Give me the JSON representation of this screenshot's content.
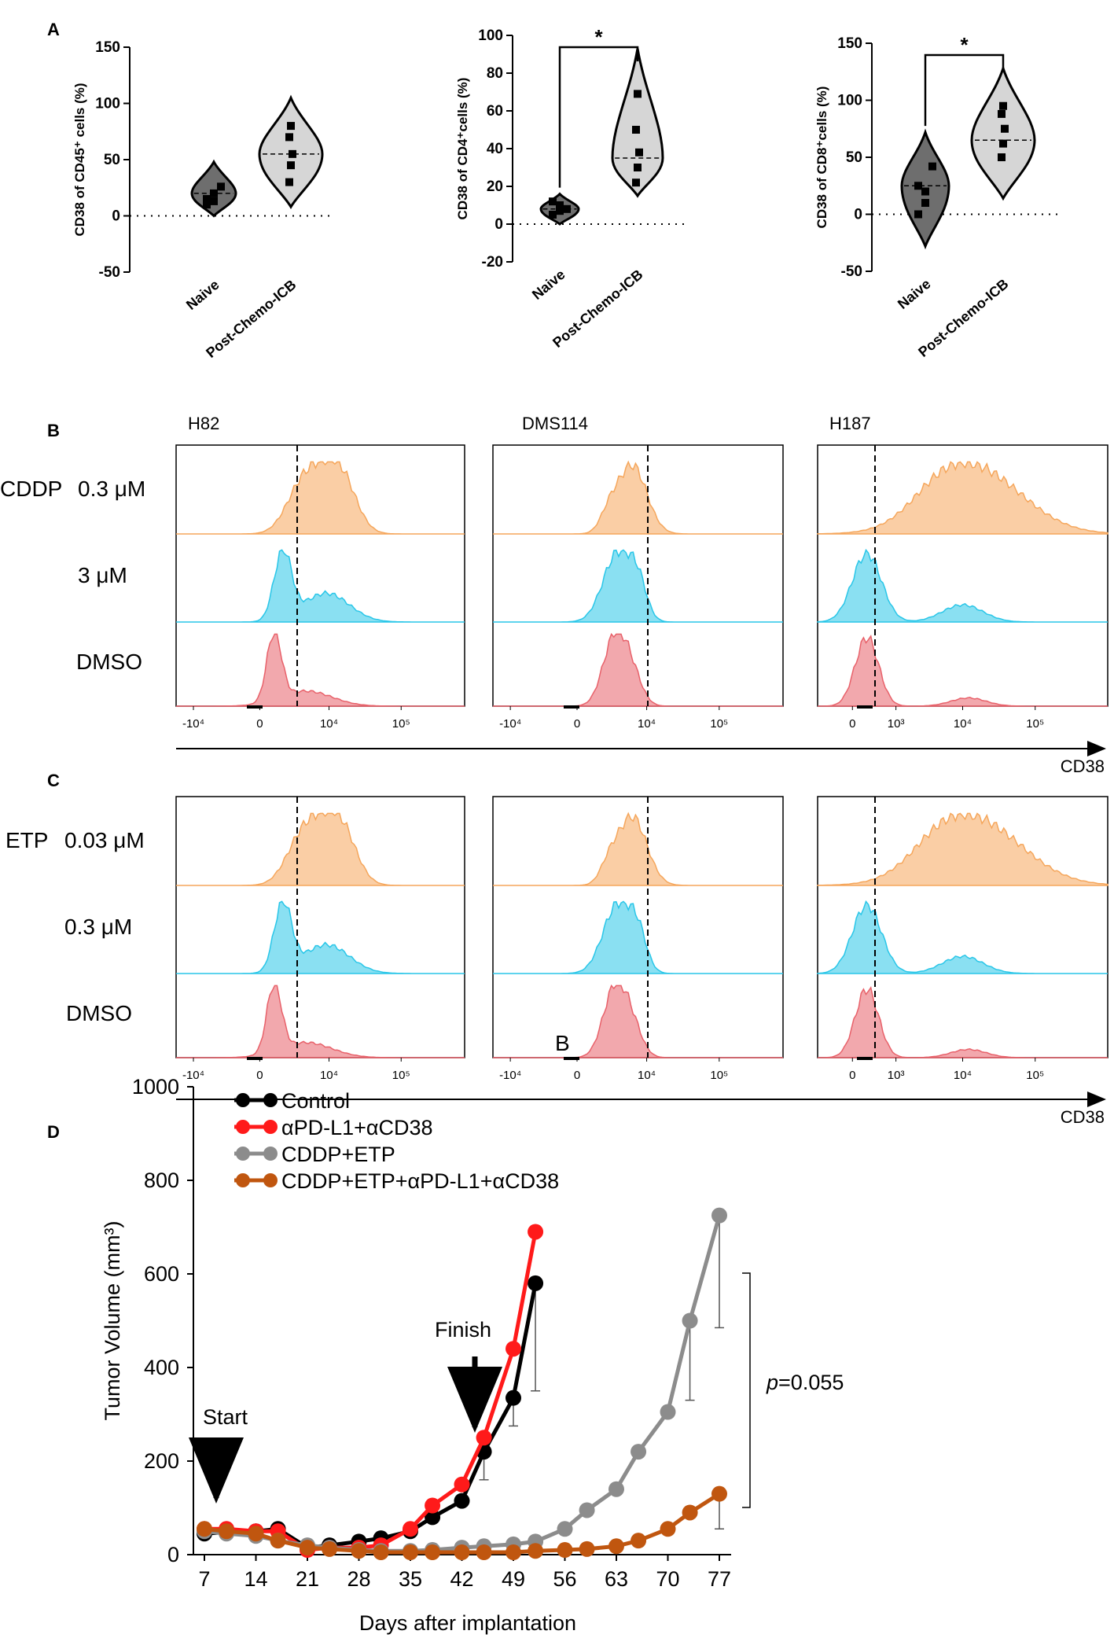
{
  "panel_labels": {
    "a": "A",
    "b": "B",
    "c": "C",
    "d": "D"
  },
  "stray_text": "B",
  "chart_data": [
    {
      "type": "violin",
      "panel": "A",
      "ylabel": "CD38 of CD45⁺ cells (%)",
      "categories": [
        "Naive",
        "Post-Chemo-ICB"
      ],
      "ylim": [
        -50,
        150
      ],
      "yticks": [
        "-50",
        "0",
        "50",
        "100",
        "150"
      ],
      "points": [
        [
          10,
          20,
          26,
          15,
          13
        ],
        [
          30,
          45,
          55,
          70,
          80
        ]
      ],
      "medians": [
        20,
        55
      ],
      "violin_range": [
        [
          0,
          48
        ],
        [
          8,
          105
        ]
      ],
      "significance": ""
    },
    {
      "type": "violin",
      "panel": "A",
      "ylabel": "CD38 of CD4⁺cells (%)",
      "categories": [
        "Naive",
        "Post-Chemo-ICB"
      ],
      "ylim": [
        -20,
        100
      ],
      "yticks": [
        "-20",
        "0",
        "20",
        "40",
        "60",
        "80",
        "100"
      ],
      "points": [
        [
          5,
          10,
          8,
          12,
          7
        ],
        [
          22,
          30,
          38,
          50,
          69
        ]
      ],
      "medians": [
        8,
        35
      ],
      "violin_range": [
        [
          0,
          16
        ],
        [
          15,
          93
        ]
      ],
      "significance": "*"
    },
    {
      "type": "violin",
      "panel": "A",
      "ylabel": "CD38 of CD8⁺cells (%)",
      "categories": [
        "Naive",
        "Post-Chemo-ICB"
      ],
      "ylim": [
        -50,
        150
      ],
      "yticks": [
        "-50",
        "0",
        "50",
        "100",
        "150"
      ],
      "points": [
        [
          0,
          20,
          42,
          25,
          10
        ],
        [
          50,
          62,
          75,
          88,
          95
        ]
      ],
      "medians": [
        25,
        65
      ],
      "violin_range": [
        [
          -28,
          72
        ],
        [
          14,
          128
        ]
      ],
      "significance": "*"
    },
    {
      "type": "histogram-overlay",
      "panel": "B",
      "column_titles": [
        "H82",
        "DMS114",
        "H187"
      ],
      "row_labels": [
        "CDDP",
        "0.3 μM",
        "3 μM",
        "DMSO"
      ],
      "xticks": [
        [
          "-10⁴",
          "0",
          "10⁴",
          "10⁵"
        ],
        [
          "-10⁴",
          "0",
          "10⁴",
          "10⁵"
        ],
        [
          "0",
          "10³",
          "10⁴",
          "10⁵"
        ]
      ],
      "xlabel": "CD38",
      "row_colors": [
        "#f5a65b",
        "#29c6e8",
        "#e8616a"
      ]
    },
    {
      "type": "histogram-overlay",
      "panel": "C",
      "column_titles": [
        "H82",
        "DMS114",
        "H187"
      ],
      "row_labels": [
        "ETP",
        "0.03 μM",
        "0.3 μM",
        "DMSO"
      ],
      "xticks": [
        [
          "-10⁴",
          "0",
          "10⁴",
          "10⁵"
        ],
        [
          "-10⁴",
          "0",
          "10⁴",
          "10⁵"
        ],
        [
          "0",
          "10³",
          "10⁴",
          "10⁵"
        ]
      ],
      "xlabel": "CD38",
      "row_colors": [
        "#f5a65b",
        "#29c6e8",
        "#e8616a"
      ]
    },
    {
      "type": "line",
      "panel": "D",
      "title": "",
      "xlabel": "Days after implantation",
      "ylabel": "Tumor Volume (mm³)",
      "ylim": [
        0,
        1000
      ],
      "xlim": [
        7,
        77
      ],
      "yticks": [
        "0",
        "200",
        "400",
        "600",
        "800",
        "1000"
      ],
      "xticks": [
        "7",
        "14",
        "21",
        "28",
        "35",
        "42",
        "49",
        "56",
        "63",
        "70",
        "77"
      ],
      "series": [
        {
          "name": "Control",
          "color": "#000000",
          "x": [
            7,
            10,
            14,
            17,
            21,
            24,
            28,
            31,
            35,
            38,
            42,
            45,
            49,
            52
          ],
          "y": [
            45,
            48,
            50,
            55,
            15,
            20,
            28,
            35,
            50,
            80,
            115,
            220,
            335,
            580
          ],
          "err": [
            0,
            0,
            0,
            0,
            0,
            0,
            0,
            0,
            0,
            0,
            0,
            60,
            60,
            230
          ]
        },
        {
          "name": "αPD-L1+αCD38",
          "color": "#ff1a1a",
          "x": [
            7,
            10,
            14,
            17,
            21,
            24,
            28,
            31,
            35,
            38,
            42,
            45,
            49,
            52
          ],
          "y": [
            55,
            55,
            50,
            50,
            10,
            15,
            15,
            20,
            55,
            105,
            150,
            250,
            440,
            690
          ],
          "err": [
            0,
            0,
            0,
            0,
            0,
            0,
            0,
            0,
            0,
            0,
            0,
            0,
            0,
            0
          ]
        },
        {
          "name": "CDDP+ETP",
          "color": "#8c8c8c",
          "x": [
            7,
            10,
            14,
            17,
            21,
            24,
            28,
            31,
            35,
            38,
            42,
            45,
            49,
            52,
            56,
            59,
            63,
            66,
            70,
            73,
            77
          ],
          "y": [
            50,
            45,
            40,
            30,
            20,
            15,
            10,
            8,
            8,
            10,
            15,
            18,
            22,
            28,
            55,
            95,
            140,
            220,
            305,
            500,
            725
          ],
          "err": [
            0,
            0,
            0,
            0,
            0,
            0,
            0,
            0,
            0,
            0,
            0,
            0,
            0,
            0,
            0,
            0,
            0,
            0,
            0,
            170,
            240
          ]
        },
        {
          "name": "CDDP+ETP+αPD-L1+αCD38",
          "color": "#c0560f",
          "x": [
            7,
            10,
            14,
            17,
            21,
            24,
            28,
            31,
            35,
            38,
            42,
            45,
            49,
            52,
            56,
            59,
            63,
            66,
            70,
            73,
            77
          ],
          "y": [
            55,
            50,
            45,
            30,
            15,
            12,
            8,
            5,
            5,
            5,
            5,
            5,
            5,
            8,
            10,
            12,
            18,
            30,
            55,
            90,
            130
          ],
          "err": [
            0,
            0,
            0,
            0,
            0,
            0,
            0,
            0,
            0,
            0,
            0,
            0,
            0,
            0,
            0,
            0,
            0,
            0,
            0,
            0,
            75
          ]
        }
      ],
      "annotations": {
        "start": "Start",
        "finish": "Finish",
        "p_symbol": "p",
        "p_value": "=0.055"
      }
    }
  ]
}
